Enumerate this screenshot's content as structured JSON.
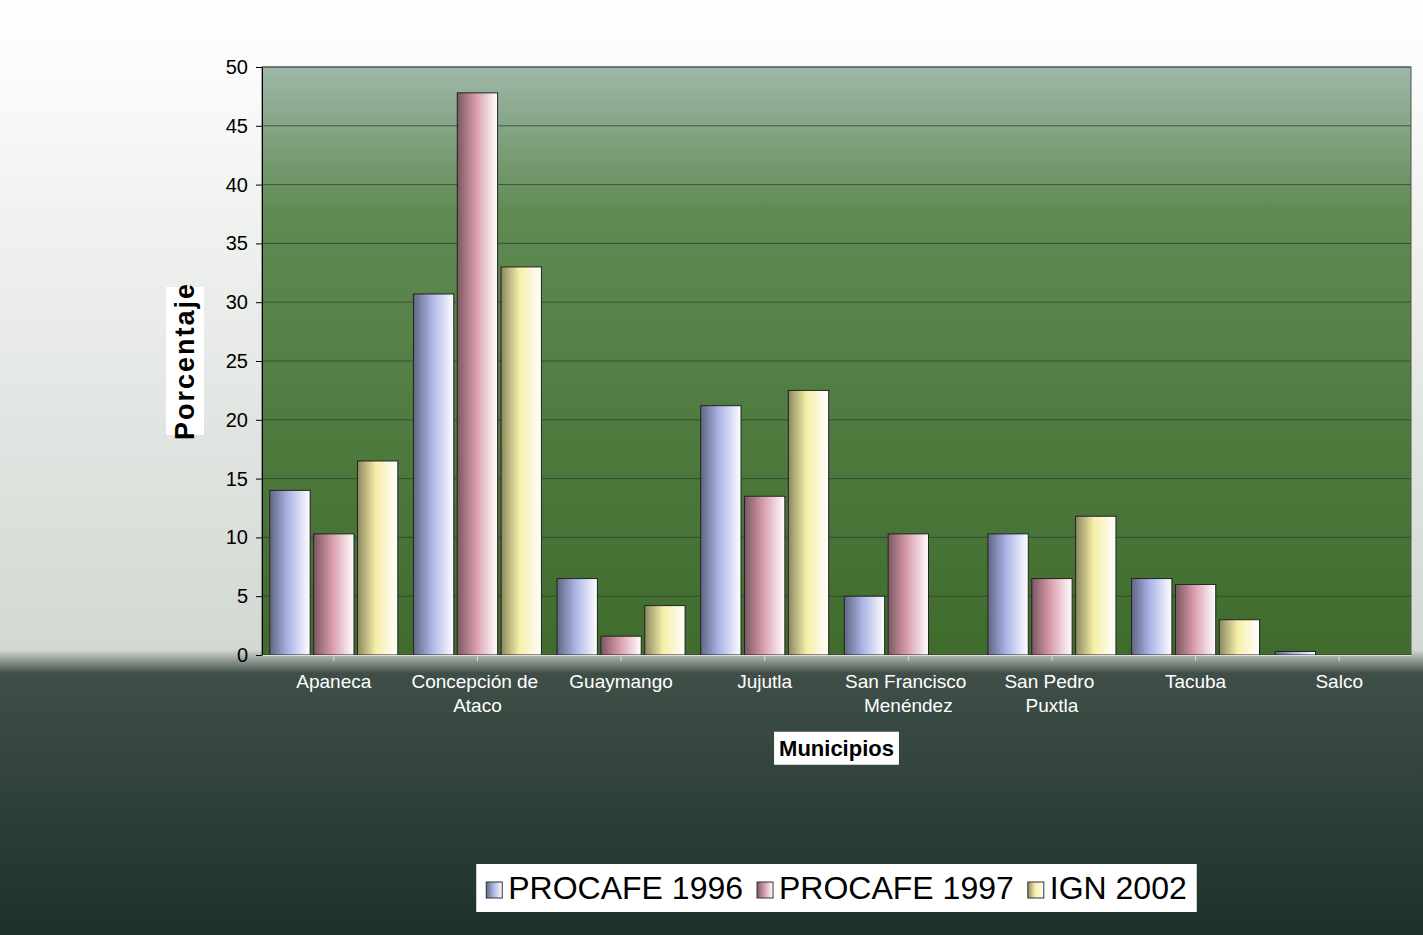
{
  "chart_data": {
    "type": "bar",
    "x_label": "Municipios",
    "y_label": "Porcentaje",
    "categories": [
      "Apaneca",
      "Concepción de Ataco",
      "Guaymango",
      "Jujutla",
      "San Francisco Menéndez",
      "San Pedro Puxtla",
      "Tacuba",
      "Salco"
    ],
    "series": [
      {
        "name": "PROCAFE 1996",
        "color": "#aab4e6",
        "values": [
          14,
          30.7,
          6.5,
          21.2,
          5,
          10.3,
          6.5,
          0.3
        ]
      },
      {
        "name": "PROCAFE 1997",
        "color": "#d89aaa",
        "values": [
          10.3,
          47.8,
          1.6,
          13.5,
          10.3,
          6.5,
          6,
          null
        ]
      },
      {
        "name": "IGN 2002",
        "color": "#f6eea8",
        "values": [
          16.5,
          33,
          4.2,
          22.5,
          0,
          11.8,
          3,
          null
        ]
      }
    ],
    "ylim": [
      0,
      50
    ],
    "yticks": [
      0,
      5,
      10,
      15,
      20,
      25,
      30,
      35,
      40,
      45,
      50
    ],
    "grid": true,
    "legend": "bottom"
  }
}
